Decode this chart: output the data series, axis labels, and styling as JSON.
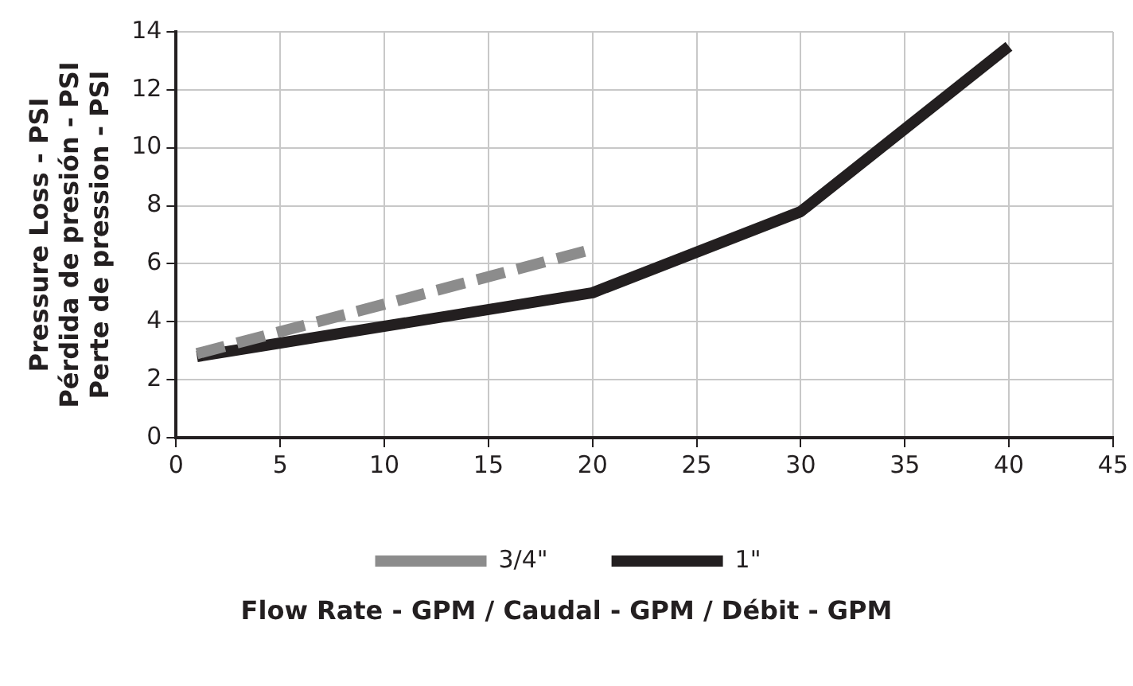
{
  "chart_data": {
    "type": "line",
    "xlabel": "Flow Rate - GPM / Caudal - GPM / Débit - GPM",
    "ylabel": "Pressure Loss - PSI\nPérdida de presión - PSI\nPerte de pression - PSI",
    "series": [
      {
        "name": "3/4\"",
        "color": "#8c8c8c",
        "line_style": "dashed",
        "x": [
          1,
          20
        ],
        "values": [
          2.9,
          6.5
        ]
      },
      {
        "name": "1\"",
        "color": "#231f20",
        "line_style": "solid",
        "x": [
          1,
          20,
          30,
          40
        ],
        "values": [
          2.8,
          5,
          7.8,
          13.5
        ]
      }
    ],
    "xlim": [
      0,
      45
    ],
    "xticks": [
      0,
      5,
      10,
      15,
      20,
      25,
      30,
      35,
      40,
      45
    ],
    "ylim": [
      0,
      14
    ],
    "yticks": [
      0,
      2,
      4,
      6,
      8,
      10,
      12,
      14
    ],
    "grid": true,
    "legend": "bottom",
    "marker": "none"
  }
}
